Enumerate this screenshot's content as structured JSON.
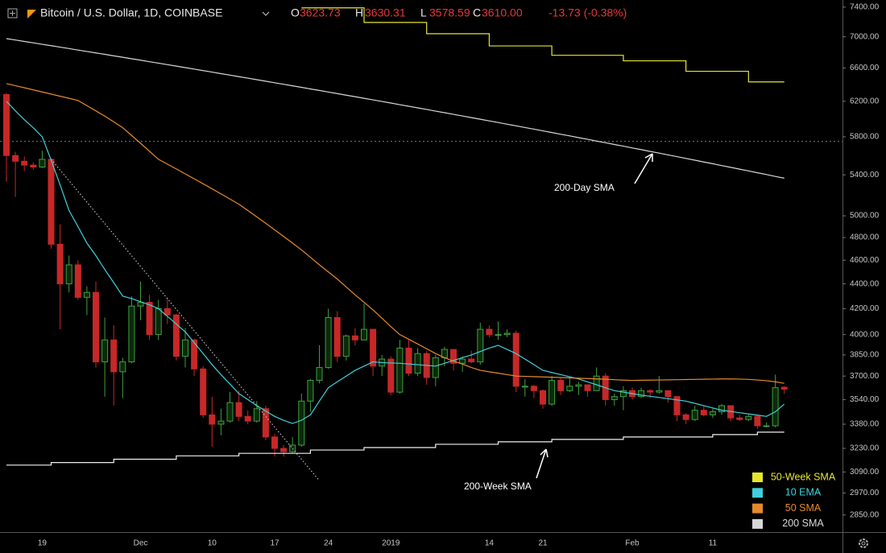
{
  "header": {
    "symbol": "Bitcoin / U.S. Dollar, 1D, COINBASE",
    "o_label": "O",
    "open": "3623.73",
    "h_label": "H",
    "high": "3630.31",
    "l_label": "L",
    "low": "3578.59",
    "c_label": "C",
    "close": "3610.00",
    "change": "-13.73 (-0.38%)"
  },
  "chart_data": {
    "type": "candlestick",
    "log_scale": true,
    "grid": false,
    "legend": "lower right",
    "up_color": "#3f9f3f",
    "down_color": "#c62828",
    "ylim": [
      2760,
      7500
    ],
    "yticks": [
      {
        "value": 2850,
        "label": "2850.00"
      },
      {
        "value": 2970,
        "label": "2970.00"
      },
      {
        "value": 3090,
        "label": "3090.00"
      },
      {
        "value": 3230,
        "label": "3230.00"
      },
      {
        "value": 3380,
        "label": "3380.00"
      },
      {
        "value": 3540,
        "label": "3540.00"
      },
      {
        "value": 3700,
        "label": "3700.00"
      },
      {
        "value": 3850,
        "label": "3850.00"
      },
      {
        "value": 4000,
        "label": "4000.00"
      },
      {
        "value": 4200,
        "label": "4200.00"
      },
      {
        "value": 4400,
        "label": "4400.00"
      },
      {
        "value": 4600,
        "label": "4600.00"
      },
      {
        "value": 4800,
        "label": "4800.00"
      },
      {
        "value": 5000,
        "label": "5000.00"
      },
      {
        "value": 5400,
        "label": "5400.00"
      },
      {
        "value": 5800,
        "label": "5800.00"
      },
      {
        "value": 6200,
        "label": "6200.00"
      },
      {
        "value": 6600,
        "label": "6600.00"
      },
      {
        "value": 7000,
        "label": "7000.00"
      },
      {
        "value": 7400,
        "label": "7400.00"
      }
    ],
    "categories": [
      null,
      null,
      null,
      null,
      "19",
      null,
      null,
      null,
      null,
      null,
      null,
      null,
      null,
      null,
      null,
      "Dec",
      null,
      null,
      null,
      null,
      null,
      null,
      null,
      "10",
      null,
      null,
      null,
      null,
      null,
      null,
      "17",
      null,
      null,
      null,
      null,
      null,
      "24",
      null,
      null,
      null,
      null,
      null,
      null,
      "2019",
      null,
      null,
      null,
      null,
      null,
      null,
      null,
      null,
      null,
      null,
      "14",
      null,
      null,
      null,
      null,
      null,
      "21",
      null,
      null,
      null,
      null,
      null,
      null,
      null,
      null,
      null,
      "Feb",
      null,
      null,
      null,
      null,
      null,
      null,
      null,
      null,
      "11",
      null,
      null,
      null,
      null,
      null,
      null,
      null,
      null
    ],
    "ohlc": [
      [
        6280,
        6300,
        5330,
        5600
      ],
      [
        5600,
        5640,
        5180,
        5540
      ],
      [
        5540,
        5590,
        5440,
        5500
      ],
      [
        5500,
        5530,
        5450,
        5480
      ],
      [
        5480,
        5650,
        5470,
        5560
      ],
      [
        5560,
        5570,
        4700,
        4740
      ],
      [
        4740,
        4920,
        4040,
        4400
      ],
      [
        4400,
        4640,
        4330,
        4560
      ],
      [
        4560,
        4600,
        4270,
        4290
      ],
      [
        4290,
        4380,
        4150,
        4330
      ],
      [
        4330,
        4420,
        3760,
        3800
      ],
      [
        3800,
        4130,
        3560,
        3960
      ],
      [
        3960,
        4070,
        3500,
        3730
      ],
      [
        3730,
        3830,
        3550,
        3800
      ],
      [
        3800,
        4300,
        3790,
        4220
      ],
      [
        4220,
        4420,
        4110,
        4250
      ],
      [
        4250,
        4310,
        3960,
        4000
      ],
      [
        4000,
        4270,
        3960,
        4200
      ],
      [
        4200,
        4280,
        4080,
        4150
      ],
      [
        4150,
        4160,
        3810,
        3840
      ],
      [
        3840,
        4050,
        3760,
        3960
      ],
      [
        3960,
        3970,
        3700,
        3750
      ],
      [
        3750,
        3770,
        3420,
        3440
      ],
      [
        3440,
        3560,
        3240,
        3380
      ],
      [
        3380,
        3480,
        3310,
        3400
      ],
      [
        3400,
        3590,
        3390,
        3520
      ],
      [
        3520,
        3600,
        3400,
        3430
      ],
      [
        3430,
        3470,
        3380,
        3400
      ],
      [
        3400,
        3530,
        3390,
        3480
      ],
      [
        3480,
        3500,
        3280,
        3300
      ],
      [
        3300,
        3320,
        3180,
        3230
      ],
      [
        3230,
        3250,
        3180,
        3210
      ],
      [
        3210,
        3300,
        3200,
        3250
      ],
      [
        3250,
        3580,
        3240,
        3530
      ],
      [
        3530,
        3680,
        3460,
        3670
      ],
      [
        3670,
        3920,
        3650,
        3760
      ],
      [
        3760,
        4200,
        3750,
        4130
      ],
      [
        4130,
        4180,
        3800,
        3840
      ],
      [
        3840,
        4000,
        3810,
        3990
      ],
      [
        3990,
        4050,
        3920,
        3960
      ],
      [
        3960,
        4240,
        3960,
        4040
      ],
      [
        4040,
        4040,
        3700,
        3770
      ],
      [
        3770,
        3850,
        3700,
        3820
      ],
      [
        3820,
        3840,
        3570,
        3590
      ],
      [
        3590,
        3960,
        3580,
        3900
      ],
      [
        3900,
        3960,
        3700,
        3720
      ],
      [
        3720,
        3900,
        3700,
        3860
      ],
      [
        3860,
        3880,
        3640,
        3690
      ],
      [
        3690,
        3850,
        3630,
        3830
      ],
      [
        3830,
        3910,
        3770,
        3890
      ],
      [
        3890,
        3890,
        3740,
        3790
      ],
      [
        3790,
        3840,
        3730,
        3820
      ],
      [
        3820,
        3880,
        3790,
        3800
      ],
      [
        3800,
        4090,
        3780,
        4040
      ],
      [
        4040,
        4070,
        3980,
        4000
      ],
      [
        4000,
        4100,
        3960,
        4000
      ],
      [
        4000,
        4040,
        3980,
        4010
      ],
      [
        4010,
        4030,
        3590,
        3630
      ],
      [
        3630,
        3680,
        3560,
        3630
      ],
      [
        3630,
        3640,
        3550,
        3600
      ],
      [
        3600,
        3610,
        3480,
        3510
      ],
      [
        3510,
        3700,
        3500,
        3670
      ],
      [
        3670,
        3690,
        3570,
        3600
      ],
      [
        3600,
        3690,
        3590,
        3630
      ],
      [
        3630,
        3660,
        3570,
        3640
      ],
      [
        3640,
        3640,
        3560,
        3600
      ],
      [
        3600,
        3760,
        3600,
        3700
      ],
      [
        3700,
        3720,
        3500,
        3540
      ],
      [
        3540,
        3580,
        3500,
        3560
      ],
      [
        3560,
        3630,
        3470,
        3600
      ],
      [
        3600,
        3620,
        3540,
        3560
      ],
      [
        3560,
        3620,
        3550,
        3600
      ],
      [
        3600,
        3610,
        3550,
        3590
      ],
      [
        3590,
        3700,
        3580,
        3600
      ],
      [
        3600,
        3600,
        3520,
        3560
      ],
      [
        3560,
        3560,
        3400,
        3440
      ],
      [
        3440,
        3450,
        3380,
        3410
      ],
      [
        3410,
        3500,
        3400,
        3470
      ],
      [
        3470,
        3500,
        3430,
        3440
      ],
      [
        3440,
        3480,
        3420,
        3460
      ],
      [
        3460,
        3510,
        3440,
        3500
      ],
      [
        3500,
        3500,
        3400,
        3420
      ],
      [
        3420,
        3440,
        3400,
        3410
      ],
      [
        3410,
        3440,
        3400,
        3430
      ],
      [
        3430,
        3440,
        3350,
        3370
      ],
      [
        3370,
        3390,
        3360,
        3370
      ],
      [
        3370,
        3710,
        3360,
        3620
      ],
      [
        3623.73,
        3630.31,
        3578.59,
        3610
      ]
    ],
    "series": [
      {
        "name": "50-Week SMA",
        "color": "#e6e62e",
        "step": true,
        "values": [
          null,
          null,
          null,
          null,
          null,
          null,
          null,
          null,
          null,
          null,
          null,
          null,
          null,
          null,
          null,
          null,
          null,
          null,
          null,
          null,
          null,
          null,
          null,
          null,
          null,
          null,
          null,
          null,
          null,
          null,
          null,
          null,
          null,
          7390,
          7390,
          7390,
          7390,
          7390,
          7390,
          7390,
          7190,
          7190,
          7190,
          7190,
          7190,
          7190,
          7190,
          7040,
          7040,
          7040,
          7040,
          7040,
          7040,
          7040,
          6880,
          6880,
          6880,
          6880,
          6880,
          6880,
          6880,
          6760,
          6760,
          6760,
          6760,
          6760,
          6760,
          6760,
          6760,
          6690,
          6690,
          6690,
          6690,
          6690,
          6690,
          6690,
          6560,
          6560,
          6560,
          6560,
          6560,
          6560,
          6560,
          6430,
          6430,
          6430,
          6430,
          6430
        ]
      },
      {
        "name": "10 EMA",
        "color": "#3fd0dc",
        "values": [
          6200,
          6090,
          5990,
          5900,
          5800,
          5550,
          5300,
          5050,
          4900,
          4750,
          4640,
          4520,
          4410,
          4300,
          4280,
          4255,
          4230,
          4200,
          4140,
          4080,
          4020,
          3940,
          3860,
          3780,
          3710,
          3645,
          3580,
          3540,
          3500,
          3465,
          3430,
          3405,
          3385,
          3405,
          3440,
          3530,
          3620,
          3660,
          3700,
          3740,
          3770,
          3800,
          3795,
          3792,
          3790,
          3785,
          3780,
          3775,
          3770,
          3790,
          3810,
          3830,
          3850,
          3875,
          3900,
          3920,
          3890,
          3860,
          3820,
          3780,
          3740,
          3725,
          3710,
          3695,
          3680,
          3660,
          3640,
          3620,
          3600,
          3590,
          3580,
          3570,
          3562,
          3554,
          3546,
          3538,
          3530,
          3515,
          3500,
          3485,
          3470,
          3462,
          3454,
          3446,
          3438,
          3430,
          3460,
          3510
        ]
      },
      {
        "name": "50 SMA",
        "color": "#e58a2c",
        "values": [
          6410,
          6385,
          6360,
          6335,
          6310,
          6285,
          6260,
          6235,
          6210,
          6150,
          6090,
          6030,
          5965,
          5900,
          5815,
          5730,
          5645,
          5560,
          5510,
          5460,
          5410,
          5360,
          5310,
          5260,
          5210,
          5160,
          5110,
          5050,
          4990,
          4930,
          4870,
          4810,
          4750,
          4690,
          4625,
          4560,
          4500,
          4440,
          4375,
          4310,
          4250,
          4190,
          4125,
          4060,
          4000,
          3965,
          3930,
          3895,
          3860,
          3830,
          3805,
          3785,
          3760,
          3740,
          3730,
          3720,
          3710,
          3700,
          3698,
          3696,
          3694,
          3692,
          3690,
          3688,
          3685,
          3683,
          3680,
          3678,
          3675,
          3672,
          3670,
          3671,
          3672,
          3673,
          3674,
          3675,
          3676,
          3677,
          3678,
          3679,
          3680,
          3680,
          3679,
          3677,
          3673,
          3668,
          3660,
          3650
        ]
      },
      {
        "name": "200 SMA",
        "color": "#d8d8d8",
        "values": [
          6975,
          6957,
          6938,
          6920,
          6901,
          6883,
          6864,
          6846,
          6827,
          6809,
          6790,
          6772,
          6753,
          6735,
          6716,
          6698,
          6679,
          6661,
          6642,
          6624,
          6605,
          6587,
          6568,
          6550,
          6531,
          6513,
          6494,
          6476,
          6457,
          6439,
          6420,
          6402,
          6383,
          6365,
          6346,
          6328,
          6309,
          6291,
          6272,
          6254,
          6235,
          6217,
          6198,
          6180,
          6161,
          6143,
          6124,
          6106,
          6087,
          6069,
          6050,
          6032,
          6013,
          5995,
          5976,
          5958,
          5939,
          5921,
          5902,
          5884,
          5865,
          5847,
          5828,
          5810,
          5791,
          5773,
          5754,
          5736,
          5717,
          5699,
          5680,
          5662,
          5643,
          5625,
          5606,
          5588,
          5569,
          5551,
          5532,
          5514,
          5495,
          5477,
          5458,
          5440,
          5421,
          5403,
          5384,
          5366
        ]
      },
      {
        "name": "200-Week SMA",
        "color": "#f0f0f0",
        "step": true,
        "legend": false,
        "values": [
          3130,
          3130,
          3130,
          3130,
          3130,
          3145,
          3145,
          3145,
          3145,
          3145,
          3145,
          3145,
          3165,
          3165,
          3165,
          3165,
          3165,
          3165,
          3165,
          3185,
          3185,
          3185,
          3185,
          3185,
          3185,
          3185,
          3200,
          3200,
          3200,
          3200,
          3200,
          3200,
          3200,
          3200,
          3220,
          3220,
          3220,
          3220,
          3220,
          3220,
          3235,
          3235,
          3235,
          3235,
          3235,
          3235,
          3235,
          3235,
          3255,
          3255,
          3255,
          3255,
          3255,
          3255,
          3255,
          3270,
          3270,
          3270,
          3270,
          3270,
          3270,
          3285,
          3285,
          3285,
          3285,
          3285,
          3285,
          3285,
          3285,
          3300,
          3300,
          3300,
          3300,
          3300,
          3300,
          3300,
          3300,
          3300,
          3300,
          3315,
          3315,
          3315,
          3315,
          3315,
          3330,
          3330,
          3330,
          3330
        ]
      }
    ],
    "trendline": {
      "x": [
        5,
        35
      ],
      "values": [
        5560,
        3040
      ]
    },
    "price_line": 5750,
    "annotations": [
      "200-Day SMA"
    ]
  }
}
